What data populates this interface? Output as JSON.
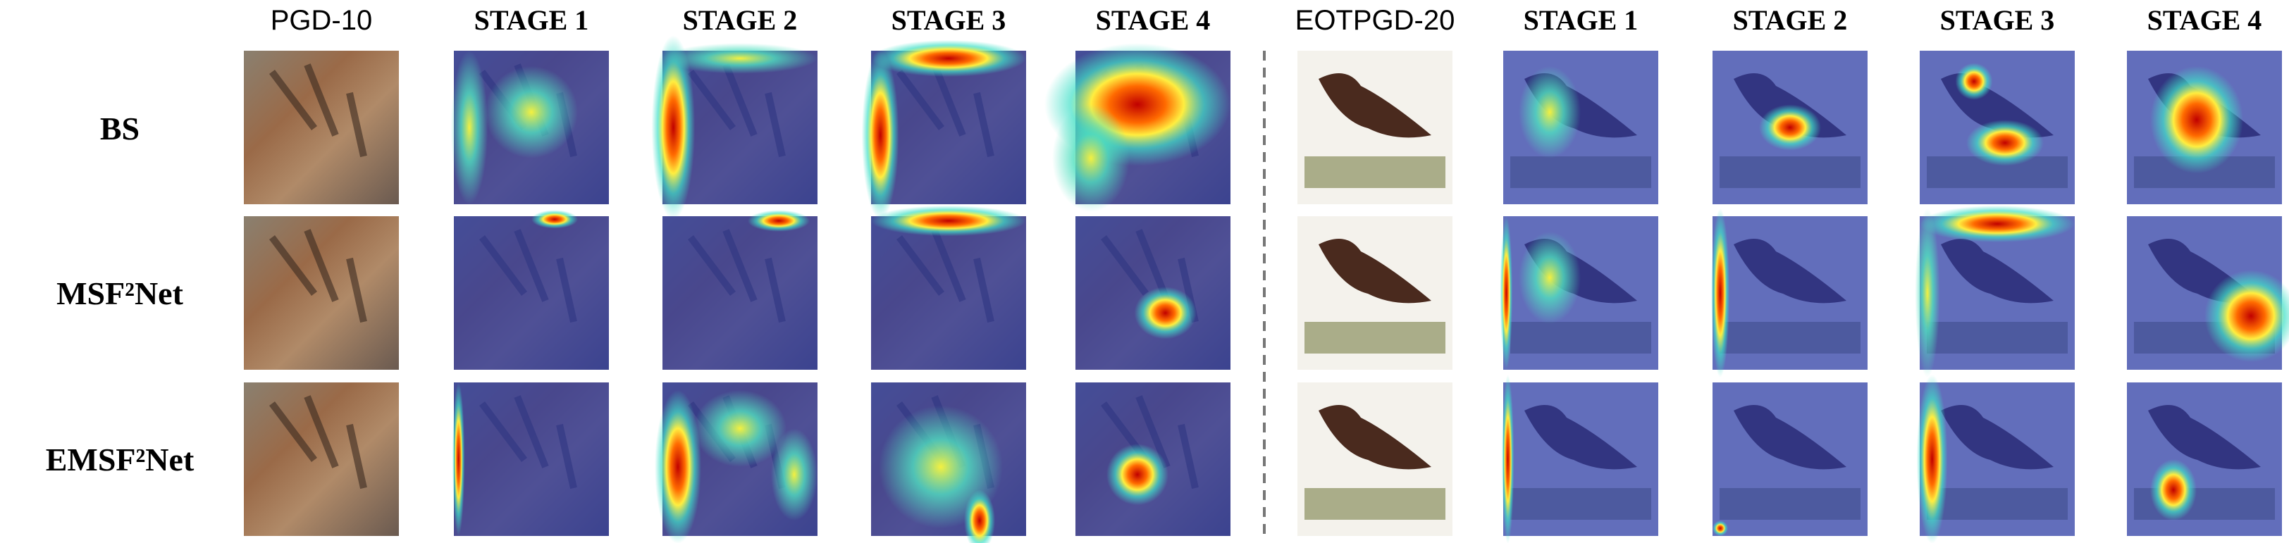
{
  "groups": [
    {
      "columns": [
        "PGD-10",
        "STAGE 1",
        "STAGE 2",
        "STAGE 3",
        "STAGE 4"
      ]
    },
    {
      "columns": [
        "EOTPGD-20",
        "STAGE 1",
        "STAGE 2",
        "STAGE 3",
        "STAGE 4"
      ]
    }
  ],
  "rows": [
    "BS",
    "MSF²Net",
    "EMSF²Net"
  ]
}
